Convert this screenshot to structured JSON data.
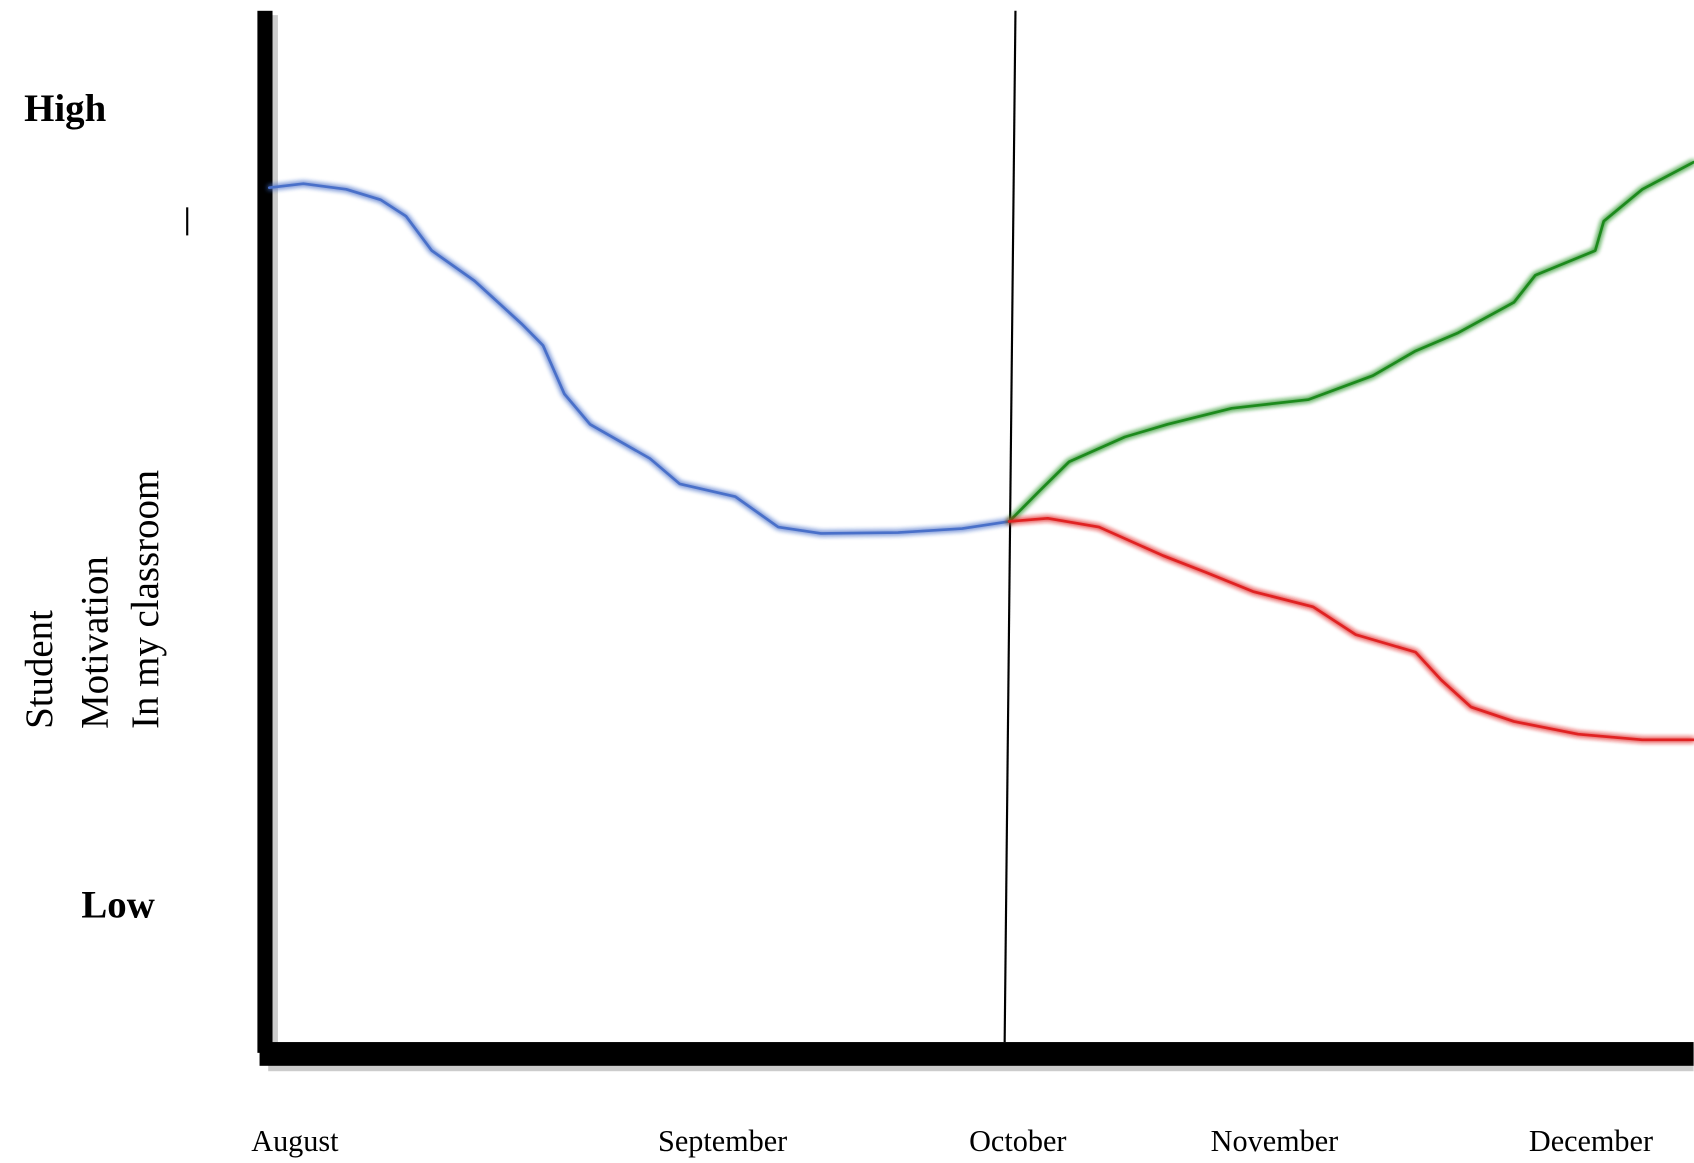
{
  "chart_data": {
    "type": "line",
    "y_label": [
      "Student",
      "Motivation",
      "In my classroom"
    ],
    "xlim": [
      -0.07,
      3.27
    ],
    "xticks": [
      {
        "value": 0,
        "label": "August"
      },
      {
        "value": 1,
        "label": "September"
      },
      {
        "value": 1.69,
        "label": "October"
      },
      {
        "value": 2.29,
        "label": "November"
      },
      {
        "value": 3.03,
        "label": "December"
      }
    ],
    "ylim": [
      -18.6,
      112.2
    ],
    "yticks": [
      {
        "value": 100,
        "label": "High"
      },
      {
        "value": 0,
        "label": "Low"
      }
    ],
    "series": [
      {
        "color": "#4a6fc9",
        "x": [
          -0.06,
          0.02,
          0.12,
          0.2,
          0.26,
          0.32,
          0.42,
          0.53,
          0.58,
          0.63,
          0.69,
          0.83,
          0.9,
          1.03,
          1.13,
          1.23,
          1.41,
          1.56,
          1.67
        ],
        "values": [
          90,
          90.5,
          89.8,
          88.5,
          86.4,
          82.1,
          78.3,
          72.9,
          70.2,
          64.1,
          60.3,
          56.0,
          52.8,
          51.2,
          47.4,
          46.6,
          46.7,
          47.2,
          48.1
        ]
      },
      {
        "color": "#1e8a1e",
        "x": [
          1.67,
          1.74,
          1.81,
          1.94,
          2.04,
          2.19,
          2.37,
          2.52,
          2.62,
          2.72,
          2.85,
          2.9,
          3.04,
          3.06,
          3.15,
          3.27
        ],
        "values": [
          48.1,
          51.9,
          55.6,
          58.7,
          60.3,
          62.3,
          63.4,
          66.4,
          69.5,
          71.8,
          75.6,
          79.0,
          82.1,
          85.8,
          89.8,
          93.2
        ]
      },
      {
        "color": "#e02020",
        "x": [
          1.67,
          1.76,
          1.88,
          2.03,
          2.13,
          2.24,
          2.38,
          2.48,
          2.62,
          2.68,
          2.75,
          2.85,
          3.0,
          3.15,
          3.27
        ],
        "values": [
          48.1,
          48.5,
          47.4,
          43.8,
          41.7,
          39.3,
          37.4,
          33.9,
          31.7,
          28.2,
          24.8,
          23.0,
          21.4,
          20.7,
          20.7
        ]
      }
    ]
  }
}
